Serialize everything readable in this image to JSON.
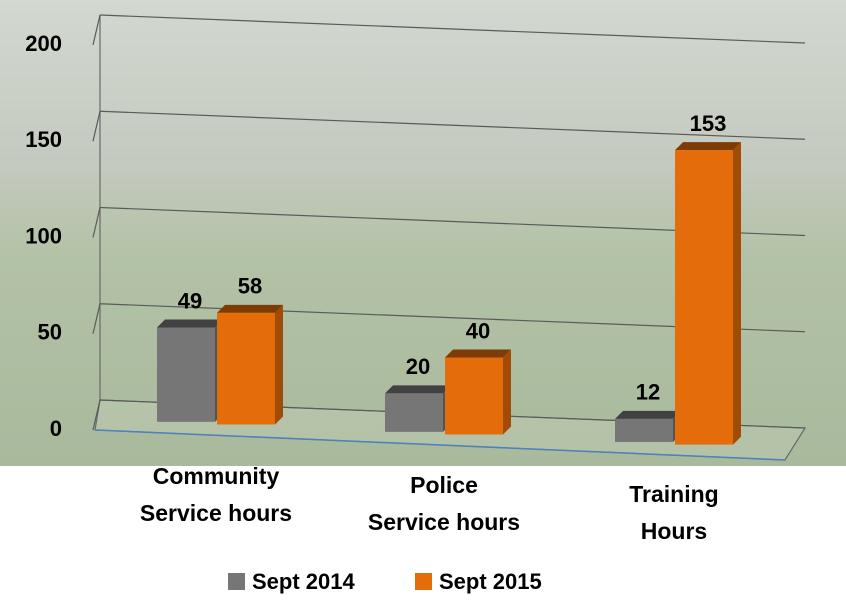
{
  "chart_data": {
    "type": "bar3d",
    "categories": [
      "Community\nService hours",
      "Police\nService hours",
      "Training\nHours"
    ],
    "series": [
      {
        "name": "Sept 2014",
        "color": "#767676",
        "values": [
          49,
          20,
          12
        ]
      },
      {
        "name": "Sept 2015",
        "color": "#e46c0a",
        "values": [
          58,
          40,
          153
        ]
      }
    ],
    "ylim": [
      0,
      200
    ],
    "yticks": [
      0,
      50,
      100,
      150,
      200
    ],
    "grid": true,
    "legend": "bottom"
  }
}
